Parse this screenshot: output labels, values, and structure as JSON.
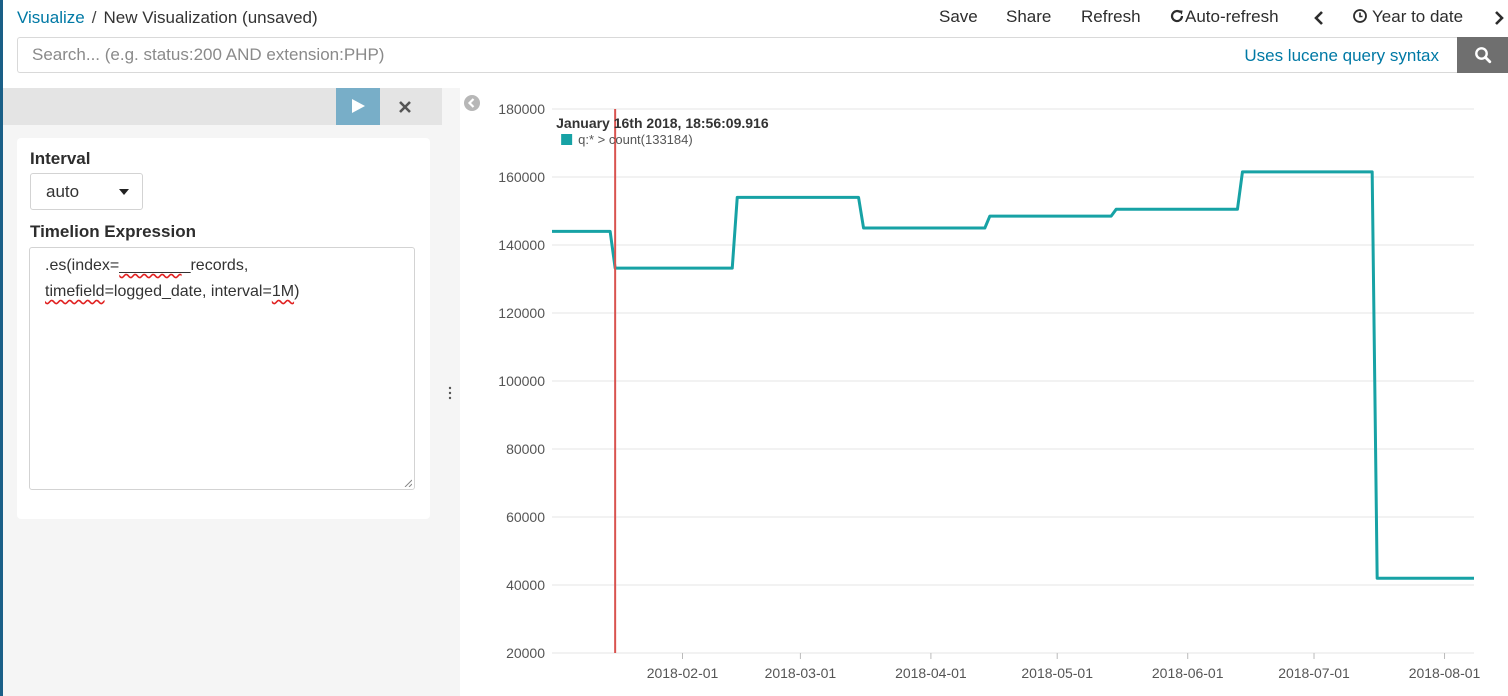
{
  "breadcrumb": {
    "root": "Visualize",
    "separator": "/",
    "current": "New Visualization (unsaved)"
  },
  "menu": {
    "save": "Save",
    "share": "Share",
    "refresh": "Refresh",
    "auto_refresh": "Auto-refresh",
    "time_range": "Year to date"
  },
  "search": {
    "placeholder": "Search... (e.g. status:200 AND extension:PHP)",
    "value": "",
    "syntax_link": "Uses lucene query syntax"
  },
  "editor": {
    "interval_label": "Interval",
    "interval_value": "auto",
    "expression_label": "Timelion Expression",
    "expression_line1_a": ".es(index=",
    "expression_line1_b": "_______",
    "expression_line1_c": "_records,",
    "expression_line2_a": "timefield",
    "expression_line2_b": "=logged_date, interval=",
    "expression_line2_c": "1M",
    "expression_line2_d": ")"
  },
  "colors": {
    "accent": "#0079a5",
    "series": "#17a2a5",
    "marker": "#d9534f",
    "run_button": "#78aec8"
  },
  "chart_data": {
    "type": "line",
    "step": true,
    "series": [
      {
        "name": "q:* > count()",
        "points": [
          [
            "2018-01-01",
            144000
          ],
          [
            "2018-01-16",
            133184
          ],
          [
            "2018-02-14",
            154000
          ],
          [
            "2018-03-16",
            145000
          ],
          [
            "2018-04-15",
            148500
          ],
          [
            "2018-05-15",
            150500
          ],
          [
            "2018-06-14",
            161500
          ],
          [
            "2018-07-16",
            42000
          ],
          [
            "2018-08-08",
            42000
          ]
        ]
      }
    ],
    "ylim": [
      20000,
      180000
    ],
    "yticks": [
      20000,
      40000,
      60000,
      80000,
      100000,
      120000,
      140000,
      160000,
      180000
    ],
    "xticks": [
      "2018-02-01",
      "2018-03-01",
      "2018-04-01",
      "2018-05-01",
      "2018-06-01",
      "2018-07-01",
      "2018-08-01"
    ],
    "xlim": [
      "2018-01-01",
      "2018-08-08"
    ],
    "grid": true,
    "cursor": {
      "date": "2018-01-16",
      "label": "January 16th 2018, 18:56:09.916",
      "series_text": "q:* > count(133184)"
    }
  }
}
